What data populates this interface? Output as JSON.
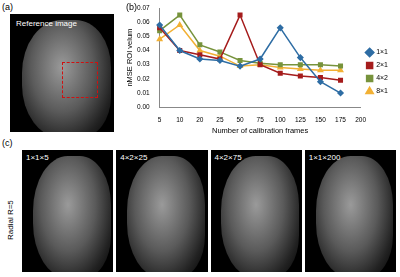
{
  "panels": [
    {
      "label": "(a)",
      "caption": "Reference image"
    },
    {
      "label": "(b)"
    },
    {
      "label": "(c)",
      "row_label": "Radial R=5",
      "images": [
        "1×1×5",
        "4×2×25",
        "4×2×75",
        "1×1×200"
      ]
    }
  ],
  "chart_data": {
    "type": "line",
    "x_label": "Number of calibration frames",
    "y_label": "nMSE ROI velum",
    "categories": [
      5,
      10,
      20,
      25,
      50,
      75,
      100,
      125,
      150,
      175,
      200
    ],
    "series": [
      {
        "name": "1×1",
        "color": "#2e6da4",
        "marker": "diamond",
        "values": [
          0.058,
          0.04,
          0.034,
          0.033,
          0.029,
          0.034,
          0.056,
          0.035,
          0.018,
          0.01,
          null
        ]
      },
      {
        "name": "2×1",
        "color": "#a51c1c",
        "marker": "square",
        "values": [
          0.056,
          0.04,
          0.037,
          0.034,
          0.065,
          0.03,
          0.024,
          0.022,
          0.021,
          0.019,
          null
        ]
      },
      {
        "name": "4×2",
        "color": "#77933c",
        "marker": "square",
        "values": [
          0.054,
          0.065,
          0.044,
          0.039,
          0.033,
          0.031,
          0.03,
          0.03,
          0.03,
          0.029,
          null
        ]
      },
      {
        "name": "8×1",
        "color": "#f2b134",
        "marker": "triangle",
        "values": [
          0.048,
          0.058,
          0.04,
          0.036,
          0.029,
          0.03,
          0.028,
          0.027,
          0.026,
          0.026,
          null
        ]
      }
    ],
    "ylim": [
      0,
      0.07
    ],
    "yticks": [
      {
        "value": 0,
        "label": "0.00"
      },
      0.01,
      0.02,
      0.03,
      0.04,
      0.05,
      0.06,
      0.07
    ],
    "grid": false,
    "legend": "right"
  }
}
